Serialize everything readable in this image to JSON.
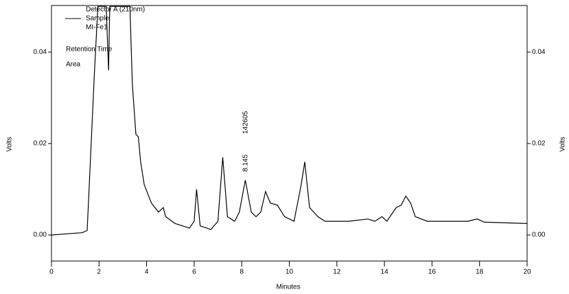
{
  "chart_data": {
    "type": "line",
    "legend_title": "Detector A (210nm)",
    "legend_lines": [
      "MI-Fe1",
      "Retention Time",
      "Area"
    ],
    "annotations": [
      "8.145",
      "142605"
    ],
    "xlabel": "Minutes",
    "ylabel": "Volts",
    "y2label": "Volts",
    "x": [
      0,
      1.3,
      1.5,
      1.6,
      1.8,
      1.95,
      2.3,
      2.4,
      2.45,
      2.9,
      3.3,
      3.4,
      3.55,
      3.65,
      3.75,
      3.9,
      4.2,
      4.5,
      4.7,
      4.8,
      5.2,
      5.8,
      6.0,
      6.1,
      6.25,
      6.7,
      7.0,
      7.2,
      7.4,
      7.7,
      7.9,
      8.15,
      8.4,
      8.6,
      8.8,
      9.0,
      9.2,
      9.5,
      9.8,
      10.2,
      10.5,
      10.65,
      10.85,
      11.2,
      11.5,
      12.5,
      13.3,
      13.6,
      13.9,
      14.1,
      14.5,
      14.7,
      14.9,
      15.1,
      15.3,
      15.8,
      17.5,
      17.9,
      18.2,
      20
    ],
    "series": [
      {
        "name": "Sample",
        "color": "#000000",
        "values": [
          0,
          0.0005,
          0.001,
          0.012,
          0.035,
          0.05,
          0.05,
          0.036,
          0.05,
          0.05,
          0.05,
          0.033,
          0.022,
          0.0215,
          0.016,
          0.011,
          0.007,
          0.005,
          0.006,
          0.004,
          0.0025,
          0.0015,
          0.003,
          0.01,
          0.002,
          0.0012,
          0.003,
          0.017,
          0.004,
          0.003,
          0.005,
          0.012,
          0.005,
          0.004,
          0.005,
          0.0095,
          0.007,
          0.0065,
          0.004,
          0.003,
          0.011,
          0.016,
          0.006,
          0.004,
          0.003,
          0.003,
          0.0035,
          0.003,
          0.004,
          0.003,
          0.006,
          0.0065,
          0.0085,
          0.007,
          0.004,
          0.003,
          0.003,
          0.0035,
          0.0028,
          0.0025
        ]
      }
    ],
    "xlim": [
      0,
      20
    ],
    "xticks": [
      0,
      2,
      4,
      6,
      8,
      10,
      12,
      14,
      16,
      18,
      20
    ],
    "ylim": [
      -0.0057,
      0.0502
    ],
    "yticks": [
      {
        "value": 0,
        "label": "0.00"
      },
      {
        "value": 0.02,
        "label": "0.02"
      },
      {
        "value": 0.04,
        "label": "0.04"
      }
    ]
  }
}
